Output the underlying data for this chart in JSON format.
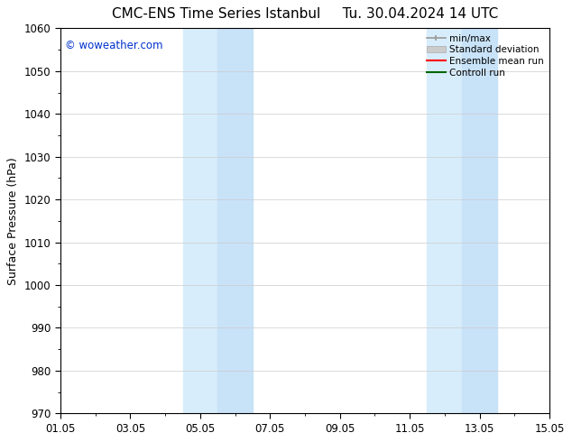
{
  "title": "CMC-ENS Time Series Istanbul     Tu. 30.04.2024 14 UTC",
  "ylabel": "Surface Pressure (hPa)",
  "xlabel_ticks": [
    "01.05",
    "03.05",
    "05.05",
    "07.05",
    "09.05",
    "11.05",
    "13.05",
    "15.05"
  ],
  "x_tick_positions": [
    0,
    2,
    4,
    6,
    8,
    10,
    12,
    14
  ],
  "ylim": [
    970,
    1060
  ],
  "xlim": [
    0,
    14
  ],
  "yticks": [
    970,
    980,
    990,
    1000,
    1010,
    1020,
    1030,
    1040,
    1050,
    1060
  ],
  "shaded_regions": [
    {
      "x_start": 3.5,
      "x_end": 4.5,
      "color": "#ddeeff"
    },
    {
      "x_start": 4.5,
      "x_end": 5.5,
      "color": "#cce5ff"
    },
    {
      "x_start": 10.5,
      "x_end": 11.5,
      "color": "#ddeeff"
    },
    {
      "x_start": 11.5,
      "x_end": 12.5,
      "color": "#cce5ff"
    }
  ],
  "watermark_text": "© woweather.com",
  "watermark_color": "#0033cc",
  "legend_entries": [
    {
      "label": "min/max"
    },
    {
      "label": "Standard deviation"
    },
    {
      "label": "Ensemble mean run"
    },
    {
      "label": "Controll run"
    }
  ],
  "legend_colors": [
    "#999999",
    "#cccccc",
    "#ff0000",
    "#006600"
  ],
  "bg_color": "#ffffff",
  "spine_color": "#000000",
  "grid_color": "#cccccc",
  "title_fontsize": 11,
  "axis_label_fontsize": 9,
  "tick_fontsize": 8.5
}
